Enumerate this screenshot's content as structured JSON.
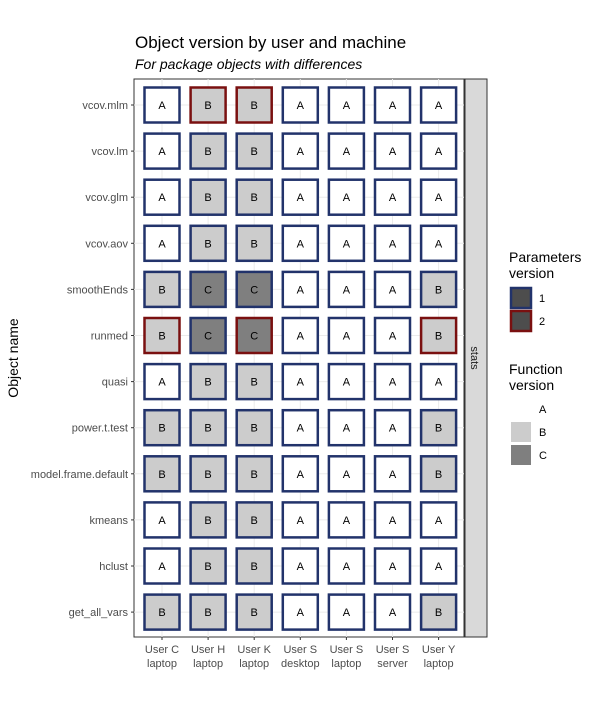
{
  "chart_data": {
    "type": "heatmap",
    "title": "Object version by user and machine",
    "subtitle": "For package objects with differences",
    "ylabel": "Object name",
    "xlabel": "",
    "facet_label": "stats",
    "columns": [
      {
        "line1": "User C",
        "line2": "laptop"
      },
      {
        "line1": "User H",
        "line2": "laptop"
      },
      {
        "line1": "User K",
        "line2": "laptop"
      },
      {
        "line1": "User S",
        "line2": "desktop"
      },
      {
        "line1": "User S",
        "line2": "laptop"
      },
      {
        "line1": "User S",
        "line2": "server"
      },
      {
        "line1": "User Y",
        "line2": "laptop"
      }
    ],
    "rows": [
      {
        "name": "vcov.mlm",
        "function": [
          "A",
          "B",
          "B",
          "A",
          "A",
          "A",
          "A"
        ],
        "params": [
          "1",
          "2",
          "2",
          "1",
          "1",
          "1",
          "1"
        ]
      },
      {
        "name": "vcov.lm",
        "function": [
          "A",
          "B",
          "B",
          "A",
          "A",
          "A",
          "A"
        ],
        "params": [
          "1",
          "1",
          "1",
          "1",
          "1",
          "1",
          "1"
        ]
      },
      {
        "name": "vcov.glm",
        "function": [
          "A",
          "B",
          "B",
          "A",
          "A",
          "A",
          "A"
        ],
        "params": [
          "1",
          "1",
          "1",
          "1",
          "1",
          "1",
          "1"
        ]
      },
      {
        "name": "vcov.aov",
        "function": [
          "A",
          "B",
          "B",
          "A",
          "A",
          "A",
          "A"
        ],
        "params": [
          "1",
          "1",
          "1",
          "1",
          "1",
          "1",
          "1"
        ]
      },
      {
        "name": "smoothEnds",
        "function": [
          "B",
          "C",
          "C",
          "A",
          "A",
          "A",
          "B"
        ],
        "params": [
          "1",
          "1",
          "1",
          "1",
          "1",
          "1",
          "1"
        ]
      },
      {
        "name": "runmed",
        "function": [
          "B",
          "C",
          "C",
          "A",
          "A",
          "A",
          "B"
        ],
        "params": [
          "2",
          "1",
          "2",
          "1",
          "1",
          "1",
          "2"
        ]
      },
      {
        "name": "quasi",
        "function": [
          "A",
          "B",
          "B",
          "A",
          "A",
          "A",
          "A"
        ],
        "params": [
          "1",
          "1",
          "1",
          "1",
          "1",
          "1",
          "1"
        ]
      },
      {
        "name": "power.t.test",
        "function": [
          "B",
          "B",
          "B",
          "A",
          "A",
          "A",
          "B"
        ],
        "params": [
          "1",
          "1",
          "1",
          "1",
          "1",
          "1",
          "1"
        ]
      },
      {
        "name": "model.frame.default",
        "function": [
          "B",
          "B",
          "B",
          "A",
          "A",
          "A",
          "B"
        ],
        "params": [
          "1",
          "1",
          "1",
          "1",
          "1",
          "1",
          "1"
        ]
      },
      {
        "name": "kmeans",
        "function": [
          "A",
          "B",
          "B",
          "A",
          "A",
          "A",
          "A"
        ],
        "params": [
          "1",
          "1",
          "1",
          "1",
          "1",
          "1",
          "1"
        ]
      },
      {
        "name": "hclust",
        "function": [
          "A",
          "B",
          "B",
          "A",
          "A",
          "A",
          "A"
        ],
        "params": [
          "1",
          "1",
          "1",
          "1",
          "1",
          "1",
          "1"
        ]
      },
      {
        "name": "get_all_vars",
        "function": [
          "B",
          "B",
          "B",
          "A",
          "A",
          "A",
          "B"
        ],
        "params": [
          "1",
          "1",
          "1",
          "1",
          "1",
          "1",
          "1"
        ]
      }
    ],
    "fill_colors": {
      "A": "#ffffff",
      "B": "#cccccc",
      "C": "#7f7f7f"
    },
    "border_colors": {
      "1": "#22336b",
      "2": "#7a1010"
    },
    "legend": {
      "parameters_title_1": "Parameters",
      "parameters_title_2": "version",
      "parameters_items": [
        "1",
        "2"
      ],
      "function_title_1": "Function",
      "function_title_2": "version",
      "function_items": [
        "A",
        "B",
        "C"
      ],
      "placement": "right"
    },
    "grid": true
  }
}
